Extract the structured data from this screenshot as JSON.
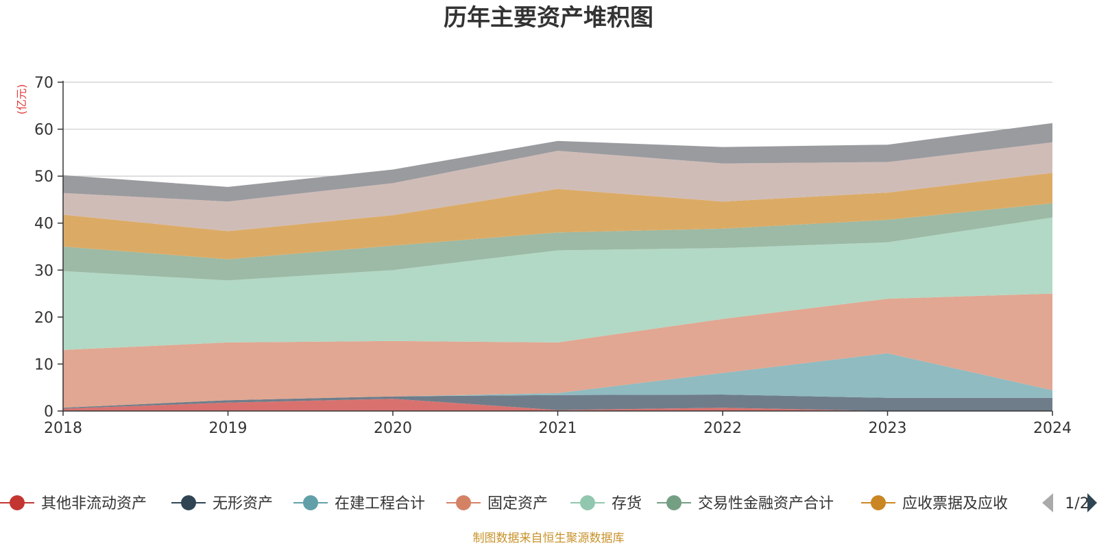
{
  "chart_data": {
    "type": "area",
    "title": "历年主要资产堆积图",
    "ylabel": "(亿元)",
    "x": [
      "2018",
      "2019",
      "2020",
      "2021",
      "2022",
      "2023",
      "2024"
    ],
    "yticks": [
      "0",
      "10",
      "20",
      "30",
      "40",
      "50",
      "60",
      "70"
    ],
    "ylim": [
      0,
      70
    ],
    "grid": true,
    "stacked": true,
    "series": [
      {
        "name": "其他非流动资产",
        "color": "#d9726f",
        "values": [
          0.5,
          1.8,
          2.6,
          0.2,
          0.7,
          0.0,
          0.0
        ]
      },
      {
        "name": "无形资产",
        "color": "#6f7d8a",
        "values": [
          0.2,
          0.5,
          0.5,
          3.2,
          2.8,
          2.8,
          2.8
        ]
      },
      {
        "name": "在建工程合计",
        "color": "#8fbbc1",
        "values": [
          0.0,
          0.0,
          0.0,
          0.4,
          4.6,
          9.5,
          1.6
        ]
      },
      {
        "name": "固定资产",
        "color": "#e1a792",
        "values": [
          12.3,
          12.3,
          11.8,
          10.8,
          11.5,
          11.6,
          20.6
        ]
      },
      {
        "name": "存货",
        "color": "#b2d9c5",
        "values": [
          16.8,
          13.2,
          15.1,
          19.6,
          15.1,
          12.0,
          16.2
        ]
      },
      {
        "name": "交易性金融资产合计",
        "color": "#9cbaa5",
        "values": [
          5.2,
          4.5,
          5.2,
          3.8,
          4.1,
          4.8,
          3.0
        ]
      },
      {
        "name": "应收票据及应收",
        "color": "#dbab66",
        "values": [
          6.8,
          6.0,
          6.5,
          9.3,
          5.8,
          5.8,
          6.5
        ]
      },
      {
        "name": "",
        "color": "#d0bcb7",
        "values": [
          4.6,
          6.3,
          6.8,
          8.1,
          8.1,
          6.5,
          6.5
        ]
      },
      {
        "name": "",
        "color": "#9a9b9f",
        "values": [
          3.8,
          3.1,
          2.9,
          2.1,
          3.5,
          3.7,
          4.1
        ]
      }
    ],
    "legend": {
      "position": "bottom",
      "page": "1/2",
      "items": [
        {
          "name": "其他非流动资产",
          "color": "#c23531"
        },
        {
          "name": "无形资产",
          "color": "#2f4554"
        },
        {
          "name": "在建工程合计",
          "color": "#61a0a8"
        },
        {
          "name": "固定资产",
          "color": "#d48265"
        },
        {
          "name": "存货",
          "color": "#91c7ae"
        },
        {
          "name": "交易性金融资产合计",
          "color": "#749f83"
        },
        {
          "name": "应收票据及应收",
          "color": "#ca8622"
        }
      ]
    },
    "source": "制图数据来自恒生聚源数据库"
  }
}
